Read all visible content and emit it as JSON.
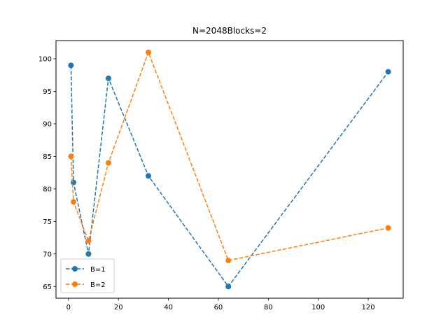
{
  "chart_data": {
    "type": "line",
    "title": "N=2048Blocks=2",
    "xlabel": "",
    "ylabel": "",
    "xlim": [
      -5,
      134
    ],
    "ylim": [
      63.2,
      102.8
    ],
    "x_ticks": [
      0,
      20,
      40,
      60,
      80,
      100,
      120
    ],
    "y_ticks": [
      65,
      70,
      75,
      80,
      85,
      90,
      95,
      100
    ],
    "grid": false,
    "legend_position": "lower-left",
    "series": [
      {
        "name": "B=1",
        "color": "#1f77b4",
        "line_style": "dashed",
        "marker": "circle",
        "x": [
          1,
          2,
          8,
          16,
          32,
          64,
          128
        ],
        "y": [
          99,
          81,
          70,
          97,
          82,
          65,
          98
        ]
      },
      {
        "name": "B=2",
        "color": "#ff7f0e",
        "line_style": "dashed",
        "marker": "circle",
        "x": [
          1,
          2,
          8,
          16,
          32,
          64,
          128
        ],
        "y": [
          85,
          78,
          72,
          84,
          101,
          69,
          74
        ]
      }
    ]
  }
}
